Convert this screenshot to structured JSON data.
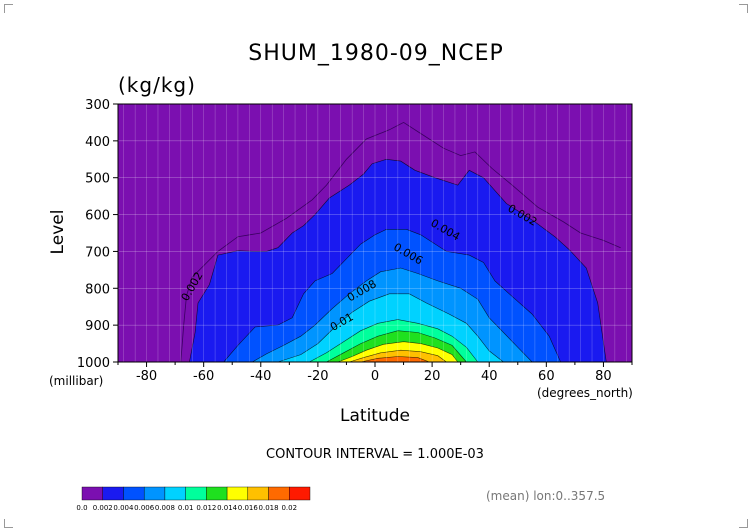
{
  "chart_data": {
    "type": "contour",
    "title": "SHUM_1980-09_NCEP",
    "units": "(kg/kg)",
    "xlabel": "Latitude",
    "ylabel": "Level",
    "x_unit": "(degrees_north)",
    "y_unit": "(millibar)",
    "xlim": [
      -90,
      90
    ],
    "ylim": [
      1000,
      300
    ],
    "x_ticks": [
      -80,
      -60,
      -40,
      -20,
      0,
      20,
      40,
      60,
      80
    ],
    "y_ticks": [
      300,
      400,
      500,
      600,
      700,
      800,
      900,
      1000
    ],
    "contour_interval_text": "CONTOUR INTERVAL = 1.000E-03",
    "footer_text": "(mean) lon:0..357.5",
    "colorbar": {
      "labels": [
        "0.0",
        "0.002",
        "0.004",
        "0.006",
        "0.008",
        "0.01",
        "0.012",
        "0.014",
        "0.016",
        "0.018",
        "0.02"
      ],
      "colors": [
        "#7b0fb0",
        "#1a1af0",
        "#0052ff",
        "#0094ff",
        "#00d2ff",
        "#00ff9c",
        "#1fe01f",
        "#ffff00",
        "#ffc000",
        "#ff6a00",
        "#ff1a00"
      ]
    },
    "contour_labels": [
      {
        "text": "0.002",
        "x": -63,
        "y": 800,
        "angle": -60
      },
      {
        "text": "0.002",
        "x": 51,
        "y": 610,
        "angle": 30
      },
      {
        "text": "0.004",
        "x": 24,
        "y": 650,
        "angle": 30
      },
      {
        "text": "0.006",
        "x": 11,
        "y": 715,
        "angle": 30
      },
      {
        "text": "0.008",
        "x": -4,
        "y": 815,
        "angle": -30
      },
      {
        "text": "0.01",
        "x": -11,
        "y": 900,
        "angle": -30
      }
    ],
    "contours": [
      {
        "level": 0.002,
        "points": [
          [
            -65,
            1000
          ],
          [
            -63,
            920
          ],
          [
            -62,
            840
          ],
          [
            -58,
            790
          ],
          [
            -55,
            710
          ],
          [
            -48,
            698
          ],
          [
            -42,
            700
          ],
          [
            -38,
            700
          ],
          [
            -34,
            690
          ],
          [
            -29,
            650
          ],
          [
            -25,
            630
          ],
          [
            -21,
            600
          ],
          [
            -16,
            555
          ],
          [
            -9,
            520
          ],
          [
            -4,
            490
          ],
          [
            -1,
            462
          ],
          [
            4,
            450
          ],
          [
            9,
            455
          ],
          [
            14,
            480
          ],
          [
            21,
            500
          ],
          [
            29,
            520
          ],
          [
            33,
            480
          ],
          [
            38,
            500
          ],
          [
            46,
            570
          ],
          [
            56,
            620
          ],
          [
            63,
            660
          ],
          [
            68,
            695
          ],
          [
            74,
            745
          ],
          [
            78,
            840
          ],
          [
            81,
            1000
          ]
        ]
      },
      {
        "level": 0.004,
        "points": [
          [
            -53,
            1000
          ],
          [
            -48,
            955
          ],
          [
            -42,
            905
          ],
          [
            -34,
            900
          ],
          [
            -29,
            880
          ],
          [
            -25,
            815
          ],
          [
            -21,
            780
          ],
          [
            -15,
            760
          ],
          [
            -10,
            720
          ],
          [
            -5,
            680
          ],
          [
            0,
            655
          ],
          [
            4,
            640
          ],
          [
            11,
            640
          ],
          [
            16,
            655
          ],
          [
            25,
            700
          ],
          [
            33,
            710
          ],
          [
            38,
            730
          ],
          [
            42,
            780
          ],
          [
            47,
            815
          ],
          [
            55,
            870
          ],
          [
            61,
            930
          ],
          [
            65,
            1000
          ]
        ]
      },
      {
        "level": 0.006,
        "points": [
          [
            -43,
            1000
          ],
          [
            -38,
            978
          ],
          [
            -32,
            955
          ],
          [
            -26,
            930
          ],
          [
            -21,
            900
          ],
          [
            -15,
            855
          ],
          [
            -9,
            815
          ],
          [
            -3,
            780
          ],
          [
            2,
            755
          ],
          [
            9,
            745
          ],
          [
            15,
            760
          ],
          [
            22,
            780
          ],
          [
            30,
            800
          ],
          [
            36,
            830
          ],
          [
            40,
            880
          ],
          [
            45,
            920
          ],
          [
            50,
            960
          ],
          [
            55,
            1000
          ]
        ]
      },
      {
        "level": 0.008,
        "points": [
          [
            -34,
            1000
          ],
          [
            -26,
            980
          ],
          [
            -20,
            950
          ],
          [
            -14,
            905
          ],
          [
            -8,
            865
          ],
          [
            -2,
            835
          ],
          [
            5,
            815
          ],
          [
            12,
            815
          ],
          [
            18,
            840
          ],
          [
            26,
            870
          ],
          [
            32,
            895
          ],
          [
            36,
            930
          ],
          [
            40,
            970
          ],
          [
            45,
            1000
          ]
        ]
      },
      {
        "level": 0.01,
        "points": [
          [
            -23,
            1000
          ],
          [
            -17,
            975
          ],
          [
            -11,
            945
          ],
          [
            -5,
            915
          ],
          [
            1,
            895
          ],
          [
            8,
            885
          ],
          [
            15,
            895
          ],
          [
            22,
            910
          ],
          [
            27,
            930
          ],
          [
            32,
            960
          ],
          [
            36,
            1000
          ]
        ]
      },
      {
        "level": 0.012,
        "points": [
          [
            -17,
            1000
          ],
          [
            -11,
            975
          ],
          [
            -5,
            950
          ],
          [
            1,
            930
          ],
          [
            8,
            915
          ],
          [
            15,
            920
          ],
          [
            21,
            935
          ],
          [
            27,
            955
          ],
          [
            32,
            1000
          ]
        ]
      },
      {
        "level": 0.014,
        "points": [
          [
            -13,
            1000
          ],
          [
            -8,
            985
          ],
          [
            -3,
            968
          ],
          [
            3,
            952
          ],
          [
            10,
            945
          ],
          [
            16,
            950
          ],
          [
            22,
            962
          ],
          [
            27,
            980
          ],
          [
            29,
            1000
          ]
        ]
      },
      {
        "level": 0.016,
        "points": [
          [
            -9,
            1000
          ],
          [
            -4,
            988
          ],
          [
            2,
            975
          ],
          [
            9,
            968
          ],
          [
            16,
            972
          ],
          [
            22,
            983
          ],
          [
            25,
            1000
          ]
        ]
      },
      {
        "level": 0.018,
        "points": [
          [
            -5,
            1000
          ],
          [
            1,
            990
          ],
          [
            8,
            985
          ],
          [
            15,
            988
          ],
          [
            19,
            1000
          ]
        ]
      }
    ],
    "thin_contours": [
      {
        "level": 0.001,
        "points": [
          [
            -68,
            1000
          ],
          [
            -67,
            900
          ],
          [
            -66,
            820
          ],
          [
            -64,
            770
          ],
          [
            -55,
            700
          ],
          [
            -48,
            660
          ],
          [
            -40,
            650
          ],
          [
            -31,
            610
          ],
          [
            -22,
            560
          ],
          [
            -17,
            520
          ],
          [
            -10,
            450
          ],
          [
            -3,
            395
          ],
          [
            5,
            370
          ],
          [
            10,
            350
          ],
          [
            16,
            380
          ],
          [
            24,
            420
          ],
          [
            30,
            440
          ],
          [
            35,
            430
          ],
          [
            41,
            475
          ],
          [
            48,
            520
          ],
          [
            57,
            580
          ],
          [
            66,
            620
          ],
          [
            72,
            650
          ],
          [
            80,
            670
          ],
          [
            86,
            690
          ]
        ]
      }
    ]
  }
}
